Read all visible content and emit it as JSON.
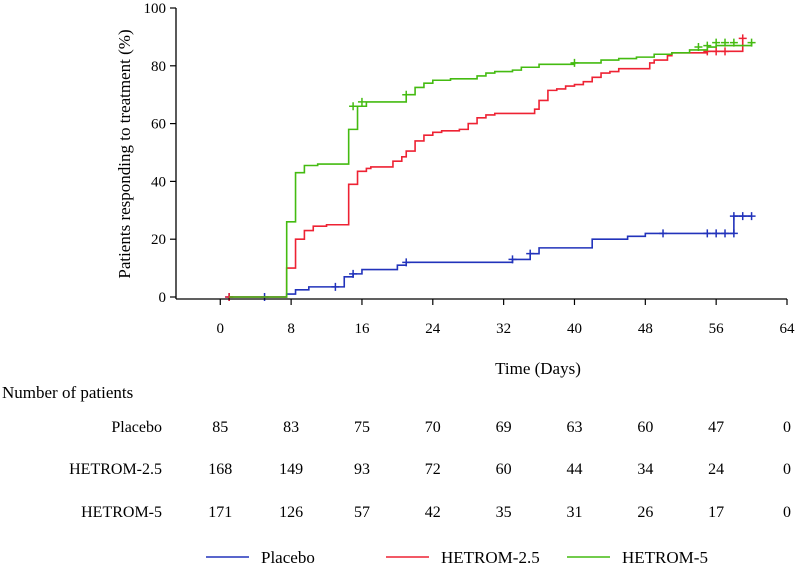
{
  "chart_data": {
    "type": "line",
    "subtype": "kaplan-meier-step",
    "xlabel": "Time (Days)",
    "ylabel": "Patients responding to treatment (%)",
    "xlim": [
      -5,
      64
    ],
    "ylim": [
      0,
      100
    ],
    "xticks": [
      0,
      8,
      16,
      24,
      32,
      40,
      48,
      56,
      64
    ],
    "yticks": [
      0,
      20,
      40,
      60,
      80,
      100
    ],
    "series": [
      {
        "name": "Placebo",
        "color": "#2233bb",
        "steps": [
          [
            1,
            0
          ],
          [
            7,
            0
          ],
          [
            7.5,
            1
          ],
          [
            8.5,
            2.5
          ],
          [
            10,
            3.5
          ],
          [
            14,
            7
          ],
          [
            15,
            8
          ],
          [
            16,
            9.5
          ],
          [
            20,
            11
          ],
          [
            21,
            12
          ],
          [
            28,
            12
          ],
          [
            33,
            13
          ],
          [
            35,
            15
          ],
          [
            36,
            17
          ],
          [
            42,
            17
          ],
          [
            42,
            20
          ],
          [
            46,
            21
          ],
          [
            48,
            22
          ],
          [
            55,
            22
          ],
          [
            58,
            22
          ],
          [
            58,
            28
          ],
          [
            60,
            28
          ]
        ],
        "censored": [
          [
            1,
            0
          ],
          [
            5,
            0
          ],
          [
            13,
            3.5
          ],
          [
            15,
            8
          ],
          [
            21,
            12
          ],
          [
            33,
            13
          ],
          [
            35,
            15
          ],
          [
            50,
            22
          ],
          [
            55,
            22
          ],
          [
            56,
            22
          ],
          [
            57,
            22
          ],
          [
            58,
            22
          ],
          [
            58,
            28
          ],
          [
            59,
            28
          ],
          [
            60,
            28
          ]
        ]
      },
      {
        "name": "HETROM-2.5",
        "color": "#ee2233",
        "steps": [
          [
            1,
            0
          ],
          [
            7,
            0
          ],
          [
            7.5,
            10
          ],
          [
            8.5,
            20
          ],
          [
            9.5,
            23
          ],
          [
            10.5,
            24.5
          ],
          [
            12,
            25
          ],
          [
            14,
            25
          ],
          [
            14.5,
            39
          ],
          [
            15.5,
            43.5
          ],
          [
            16.5,
            44.5
          ],
          [
            17,
            45
          ],
          [
            19,
            45
          ],
          [
            19.5,
            47
          ],
          [
            20.5,
            48.5
          ],
          [
            21,
            50.5
          ],
          [
            22,
            54
          ],
          [
            23,
            56
          ],
          [
            24,
            57
          ],
          [
            25,
            57.5
          ],
          [
            27,
            58
          ],
          [
            28,
            60
          ],
          [
            29,
            62
          ],
          [
            30,
            63
          ],
          [
            31,
            63.5
          ],
          [
            35,
            63.5
          ],
          [
            35.5,
            65
          ],
          [
            36,
            68
          ],
          [
            37,
            71.5
          ],
          [
            38,
            72
          ],
          [
            39,
            73
          ],
          [
            40,
            73.5
          ],
          [
            41,
            74.5
          ],
          [
            42,
            76
          ],
          [
            43,
            77.5
          ],
          [
            44,
            78
          ],
          [
            45,
            79
          ],
          [
            48,
            79
          ],
          [
            48.5,
            81
          ],
          [
            49,
            82
          ],
          [
            50,
            82
          ],
          [
            50.5,
            83.5
          ],
          [
            51,
            84.5
          ],
          [
            53,
            84.5
          ],
          [
            55,
            85
          ],
          [
            58,
            85
          ],
          [
            58.5,
            85
          ],
          [
            59,
            89.5
          ]
        ],
        "censored": [
          [
            1,
            0
          ],
          [
            55,
            85
          ],
          [
            56,
            85
          ],
          [
            57,
            85
          ],
          [
            59,
            89.5
          ]
        ]
      },
      {
        "name": "HETROM-5",
        "color": "#44bb11",
        "steps": [
          [
            1,
            0
          ],
          [
            7,
            0
          ],
          [
            7.5,
            26
          ],
          [
            8.5,
            43
          ],
          [
            9.5,
            45.5
          ],
          [
            11,
            46
          ],
          [
            14,
            46
          ],
          [
            14.5,
            58
          ],
          [
            15.5,
            66
          ],
          [
            16.5,
            67.5
          ],
          [
            20,
            67.5
          ],
          [
            21,
            70
          ],
          [
            22,
            72.5
          ],
          [
            23,
            74
          ],
          [
            24,
            75
          ],
          [
            26,
            75.5
          ],
          [
            29,
            76.5
          ],
          [
            30,
            77.5
          ],
          [
            31,
            78
          ],
          [
            33,
            78.5
          ],
          [
            34,
            79.5
          ],
          [
            36,
            80.5
          ],
          [
            40,
            81
          ],
          [
            43,
            82
          ],
          [
            45,
            82.5
          ],
          [
            47,
            83
          ],
          [
            49,
            84
          ],
          [
            51,
            84.5
          ],
          [
            53,
            85.5
          ],
          [
            55,
            86.5
          ],
          [
            56,
            87
          ],
          [
            60,
            88
          ]
        ],
        "censored": [
          [
            15,
            66
          ],
          [
            16,
            67.5
          ],
          [
            21,
            70
          ],
          [
            40,
            81
          ],
          [
            54,
            86.5
          ],
          [
            55,
            87
          ],
          [
            56,
            88
          ],
          [
            57,
            88
          ],
          [
            58,
            88
          ],
          [
            60,
            88
          ]
        ]
      }
    ],
    "legend": [
      "Placebo",
      "HETROM-2.5",
      "HETROM-5"
    ],
    "legend_position": "bottom",
    "risk_table": {
      "title": "Number of patients",
      "times": [
        0,
        8,
        16,
        24,
        32,
        40,
        48,
        56,
        64
      ],
      "rows": [
        {
          "label": "Placebo",
          "values": [
            "85",
            "83",
            "75",
            "70",
            "69",
            "63",
            "60",
            "47",
            "0"
          ]
        },
        {
          "label": "HETROM-2.5",
          "values": [
            "168",
            "149",
            "93",
            "72",
            "60",
            "44",
            "34",
            "24",
            "0"
          ]
        },
        {
          "label": "HETROM-5",
          "values": [
            "171",
            "126",
            "57",
            "42",
            "35",
            "31",
            "26",
            "17",
            "0"
          ]
        }
      ]
    }
  }
}
